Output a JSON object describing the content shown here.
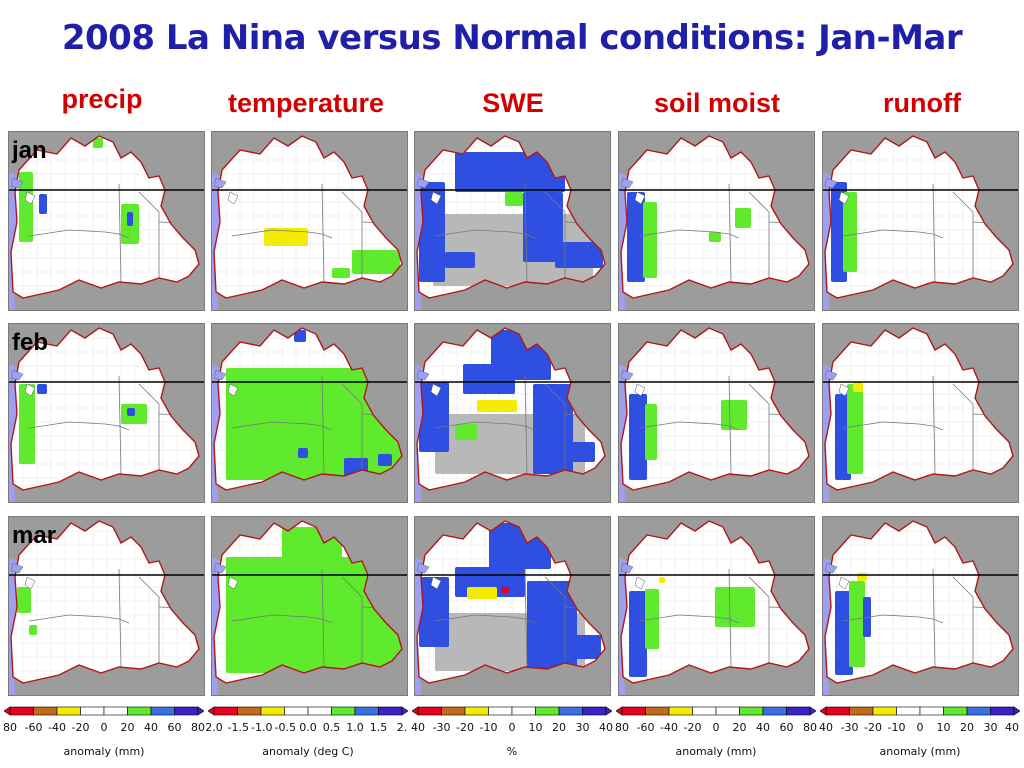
{
  "title": "2008 La Nina versus Normal conditions:  Jan-Mar",
  "columns": [
    {
      "key": "precip",
      "label": "precip",
      "legend_ticks": [
        "80",
        "-60",
        "-40",
        "-20",
        "0",
        "20",
        "40",
        "60",
        "80"
      ],
      "legend_unit": "anomaly (mm)"
    },
    {
      "key": "temperature",
      "label": "temperature",
      "legend_ticks": [
        "2.0",
        "-1.5",
        "-1.0",
        "-0.5",
        "0.0",
        "0.5",
        "1.0",
        "1.5",
        "2."
      ],
      "legend_unit": "anomaly (deg C)"
    },
    {
      "key": "swe",
      "label": "SWE",
      "legend_ticks": [
        "40",
        "-30",
        "-20",
        "-10",
        "0",
        "10",
        "20",
        "30",
        "40"
      ],
      "legend_unit": "%"
    },
    {
      "key": "soil_moist",
      "label": "soil moist",
      "legend_ticks": [
        "80",
        "-60",
        "-40",
        "-20",
        "0",
        "20",
        "40",
        "60",
        "80"
      ],
      "legend_unit": "anomaly (mm)"
    },
    {
      "key": "runoff",
      "label": "runoff",
      "legend_ticks": [
        "40",
        "-30",
        "-20",
        "-10",
        "0",
        "10",
        "20",
        "30",
        "40"
      ],
      "legend_unit": "anomaly (mm)"
    }
  ],
  "rows": [
    {
      "key": "jan",
      "label": "jan"
    },
    {
      "key": "feb",
      "label": "feb"
    },
    {
      "key": "mar",
      "label": "mar"
    }
  ],
  "legend_colors": [
    "#e8001c",
    "#c46a1c",
    "#f3ec00",
    "#ffffff",
    "#ffffff",
    "#5fea2e",
    "#3a6fe8",
    "#3b23c8"
  ],
  "colors": {
    "title": "#1f1fa8",
    "column_header": "#d40000",
    "basin_fill": "#ffffff",
    "outside_land": "#9c9c9c",
    "ocean": "#9f9ff0",
    "boundary": "#b01818",
    "green_anomaly": "#5fea2e",
    "blue_anomaly": "#2f4fe0",
    "yellow_anomaly": "#f3ec00",
    "gray_no_snow": "#b8b8b8"
  }
}
